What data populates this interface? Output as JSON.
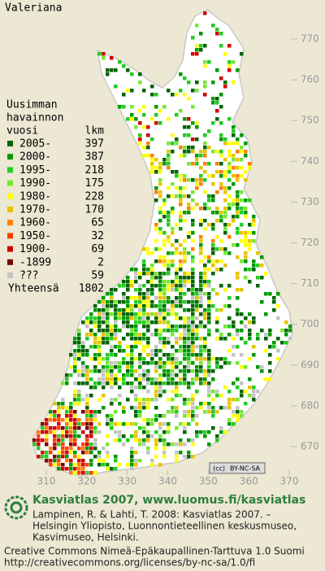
{
  "map": {
    "title": "Valeriana",
    "legend": {
      "heading": [
        "Uusimman",
        "havainnon",
        "vuosi"
      ],
      "count_heading": "lkm",
      "items": [
        {
          "label": "2005-",
          "count": 397,
          "color": "#006400"
        },
        {
          "label": "2000-",
          "count": 387,
          "color": "#009a00"
        },
        {
          "label": "1995-",
          "count": 218,
          "color": "#22cc22"
        },
        {
          "label": "1990-",
          "count": 175,
          "color": "#77e833"
        },
        {
          "label": "1980-",
          "count": 228,
          "color": "#ffff00"
        },
        {
          "label": "1970-",
          "count": 170,
          "color": "#e6c400"
        },
        {
          "label": "1960-",
          "count": 65,
          "color": "#ff7f00"
        },
        {
          "label": "1950-",
          "count": 32,
          "color": "#ff3f00"
        },
        {
          "label": "1900-",
          "count": 69,
          "color": "#d40000"
        },
        {
          "label": "-1899",
          "count": 2,
          "color": "#7a0000"
        },
        {
          "label": "???",
          "count": 59,
          "color": "#c4c4c4"
        }
      ],
      "total_label": "Yhteensä",
      "total": 1802
    },
    "y_axis": {
      "lim": [
        670,
        770
      ],
      "ticks": [
        770,
        760,
        750,
        740,
        730,
        720,
        710,
        700,
        690,
        680,
        670
      ]
    },
    "x_axis": {
      "lim": [
        310,
        370
      ],
      "ticks": [
        310,
        320,
        330,
        340,
        350,
        360,
        370
      ]
    },
    "license_badge": "BY-NC-SA",
    "footer": {
      "brand": "Kasviatlas 2007, www.luomus.fi/kasviatlas",
      "citation": [
        "Lampinen, R. & Lahti, T. 2008: Kasviatlas 2007. –",
        "Helsingin Yliopisto, Luonnontieteellinen keskusmuseo,",
        "Kasvimuseo, Helsinki."
      ],
      "license": [
        "Creative Commons Nimeä-Epäkaupallinen-Tarttuva 1.0 Suomi",
        "http://creativecommons.org/licenses/by-nc-sa/1.0/fi"
      ]
    }
  }
}
